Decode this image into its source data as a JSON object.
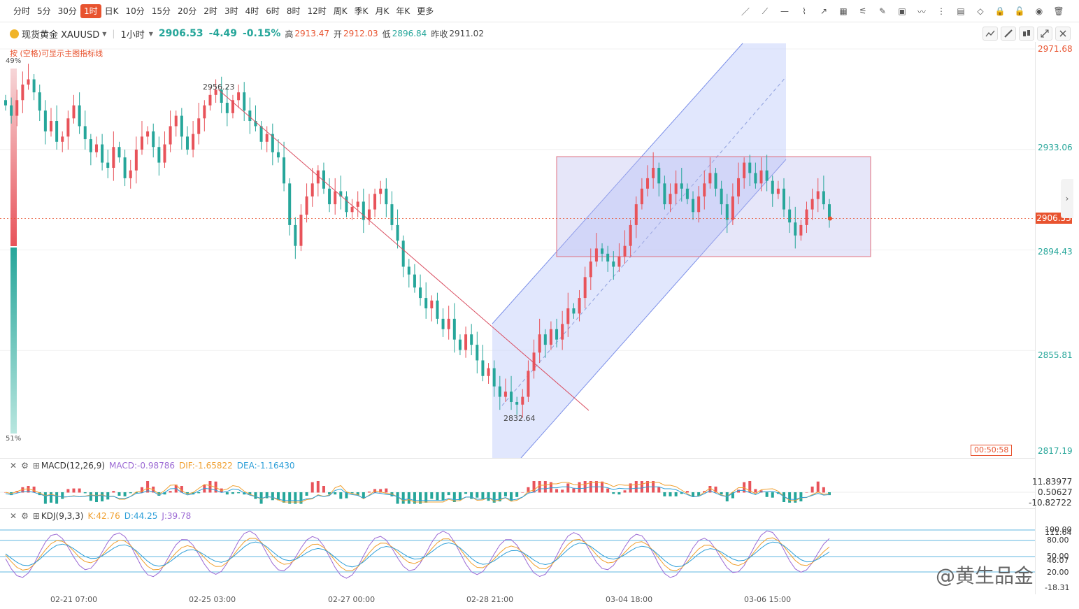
{
  "toolbar": {
    "periods": [
      "分时",
      "5分",
      "30分",
      "1时",
      "日K",
      "10分",
      "15分",
      "20分",
      "2时",
      "3时",
      "4时",
      "6时",
      "8时",
      "12时",
      "周K",
      "季K",
      "月K",
      "年K",
      "更多"
    ],
    "active_period": "1时",
    "tools": [
      "trend-line-icon",
      "ray-line-icon",
      "horizontal-line-icon",
      "polyline-icon",
      "arrow-line-icon",
      "fibonacci-icon",
      "gann-fan-icon",
      "pencil-icon",
      "image-icon",
      "wave-icon",
      "more-dots-icon",
      "note-icon",
      "eraser-icon",
      "lock-icon",
      "unlock-icon",
      "eye-icon",
      "trash-icon"
    ]
  },
  "info": {
    "symbol": "现货黄金 XAUUSD",
    "interval": "1小时",
    "price": "2906.53",
    "change": "-4.49",
    "change_pct": "-0.15%",
    "high_label": "高",
    "high": "2913.47",
    "open_label": "开",
    "open": "2912.03",
    "low_label": "低",
    "low": "2896.84",
    "prev_label": "昨收",
    "prev": "2911.02"
  },
  "hint": "按 (空格)可显示主图指标线",
  "sentiment": {
    "top": "49%",
    "bottom": "51%"
  },
  "annotations": {
    "high_mark": "2956.23",
    "low_mark": "2832.64"
  },
  "y_axis": {
    "labels": [
      "2971.68",
      "2933.06",
      "2894.43",
      "2855.81",
      "2817.19"
    ],
    "current": "2906.53",
    "countdown": "00:50:58"
  },
  "macd": {
    "title": "MACD(12,26,9)",
    "macd": "MACD:-0.98786",
    "dif": "DIF:-1.65822",
    "dea": "DEA:-1.16430",
    "axis": [
      "11.83977",
      "0.50627",
      "-10.82722"
    ]
  },
  "kdj": {
    "title": "KDJ(9,3,3)",
    "k": "K:42.76",
    "d": "D:44.25",
    "j": "J:39.78",
    "axis": [
      "100.00",
      "111.64",
      "80.00",
      "50.00",
      "46.07",
      "20.00",
      "-18.31"
    ]
  },
  "x_axis": [
    "02-21 07:00",
    "02-25 03:00",
    "02-27 00:00",
    "02-28 21:00",
    "03-04 18:00",
    "03-06 15:00"
  ],
  "watermark": "@黄生品金",
  "colors": {
    "up": "#e8535a",
    "down": "#26a69a",
    "accent": "#e8532f",
    "channel": "#c8d3fb",
    "box": "#cfd0f5"
  },
  "chart_data": {
    "type": "candlestick",
    "ylim": [
      2817.19,
      2971.68
    ],
    "closes": [
      2950,
      2946,
      2952,
      2958,
      2960,
      2955,
      2948,
      2940,
      2944,
      2936,
      2938,
      2945,
      2950,
      2942,
      2937,
      2932,
      2935,
      2928,
      2926,
      2934,
      2930,
      2922,
      2925,
      2933,
      2938,
      2940,
      2934,
      2928,
      2935,
      2942,
      2946,
      2938,
      2933,
      2939,
      2945,
      2950,
      2954,
      2956,
      2951,
      2947,
      2952,
      2955,
      2948,
      2944,
      2942,
      2936,
      2939,
      2932,
      2930,
      2920,
      2904,
      2896,
      2908,
      2915,
      2920,
      2925,
      2918,
      2912,
      2917,
      2915,
      2909,
      2911,
      2913,
      2906,
      2910,
      2916,
      2918,
      2912,
      2904,
      2898,
      2888,
      2885,
      2880,
      2876,
      2872,
      2875,
      2868,
      2864,
      2868,
      2860,
      2856,
      2862,
      2858,
      2852,
      2846,
      2849,
      2842,
      2838,
      2840,
      2836,
      2835,
      2838,
      2848,
      2855,
      2862,
      2858,
      2864,
      2860,
      2866,
      2872,
      2870,
      2876,
      2884,
      2890,
      2895,
      2893,
      2890,
      2888,
      2892,
      2896,
      2904,
      2912,
      2918,
      2922,
      2926,
      2920,
      2912,
      2916,
      2920,
      2918,
      2914,
      2909,
      2915,
      2920,
      2924,
      2918,
      2912,
      2906,
      2915,
      2922,
      2928,
      2924,
      2920,
      2925,
      2921,
      2916,
      2918,
      2910,
      2905,
      2900,
      2904,
      2910,
      2914,
      2917,
      2912,
      2906
    ]
  }
}
